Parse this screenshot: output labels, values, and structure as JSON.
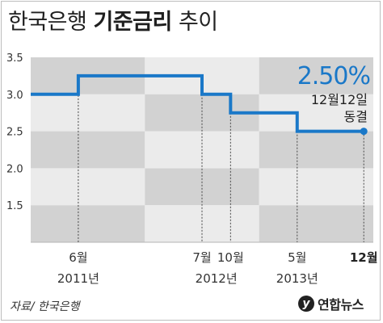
{
  "title": {
    "part1": "한국은행",
    "part2": "기준금리",
    "part3": "추이"
  },
  "source": "자료/ 한국은행",
  "logo": {
    "mark": "y",
    "text": "연합뉴스"
  },
  "chart_data": {
    "type": "line",
    "step": true,
    "title": "",
    "xlabel": "",
    "ylabel": "",
    "ylim": [
      1,
      3.5
    ],
    "y_ticks": [
      "1.5",
      "2.0",
      "2.5",
      "3.0",
      "3.5"
    ],
    "y_tick_values": [
      1.5,
      2.0,
      2.5,
      3.0,
      3.5
    ],
    "grid": "alternating-bands",
    "series": [
      {
        "values": [
          3.0,
          3.25,
          3.25,
          3.0,
          2.75,
          2.5,
          2.5
        ],
        "x": [
          "2011-01",
          "2011-06",
          "2012-06",
          "2012-07",
          "2012-10",
          "2013-05",
          "2013-12"
        ]
      }
    ],
    "x_markers": [
      {
        "month": "6월",
        "year": "2011년"
      },
      {
        "month": "7월",
        "year": ""
      },
      {
        "month": "10월",
        "year": "2012년"
      },
      {
        "month": "5월",
        "year": "2013년"
      },
      {
        "month": "12월",
        "year": ""
      }
    ],
    "annotation": {
      "value": "2.50%",
      "line1": "12월12일",
      "line2": "동결"
    },
    "colors": {
      "line": "#1a78c8",
      "band_dark": "#d2d2d2",
      "band_light": "#ebebeb",
      "annotation": "#1a78c8"
    }
  }
}
